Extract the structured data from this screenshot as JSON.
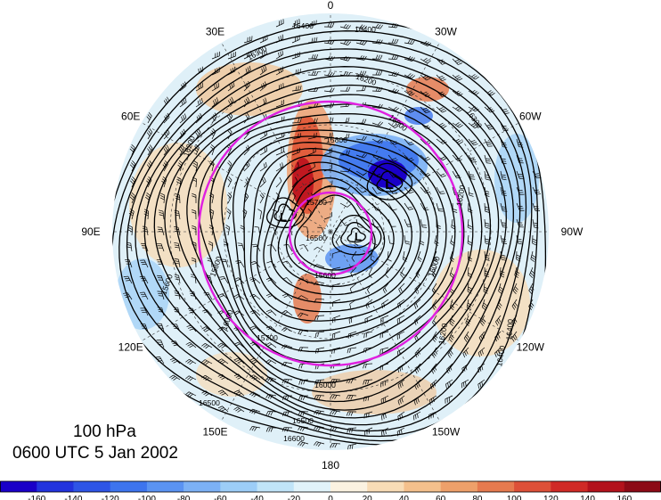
{
  "map": {
    "level": "100 hPa",
    "valid_time": "0600 UTC 5 Jan 2002",
    "longitude_labels": [
      {
        "text": "0",
        "lon": 0
      },
      {
        "text": "30W",
        "lon": -30
      },
      {
        "text": "60W",
        "lon": -60
      },
      {
        "text": "90W",
        "lon": -90
      },
      {
        "text": "120W",
        "lon": -120
      },
      {
        "text": "150W",
        "lon": -150
      },
      {
        "text": "180",
        "lon": 180
      },
      {
        "text": "150E",
        "lon": 150
      },
      {
        "text": "120E",
        "lon": 120
      },
      {
        "text": "90E",
        "lon": 90
      },
      {
        "text": "60E",
        "lon": 60
      },
      {
        "text": "30E",
        "lon": 30
      }
    ],
    "low_centers": [
      "L",
      "L",
      "L"
    ],
    "contour_labels": [
      "16400",
      "16400",
      "16300",
      "16200",
      "16200",
      "16000",
      "15800",
      "15700",
      "15600",
      "15700",
      "16000",
      "16200",
      "16400",
      "16500",
      "16600",
      "16500",
      "16000",
      "15800",
      "15600",
      "16200",
      "16300",
      "16400",
      "16500",
      "16000"
    ],
    "highlight_circle_color": "#e020e0",
    "colors": {
      "deep_blue": "#1a00c8",
      "positive_peak": "#c8102e",
      "neutral": "#ffffff"
    }
  },
  "colorbar": {
    "ticks": [
      "-160",
      "-140",
      "-120",
      "-100",
      "-80",
      "-60",
      "-40",
      "-20",
      "0",
      "20",
      "40",
      "60",
      "80",
      "100",
      "120",
      "140",
      "160"
    ],
    "colors": [
      "#1a00c8",
      "#2233dd",
      "#2e55e6",
      "#3d74ee",
      "#5a93f2",
      "#7cb1f5",
      "#9ccdf7",
      "#c0e4f8",
      "#e1f3fa",
      "#fbf2e1",
      "#f8dcb6",
      "#f4c08c",
      "#eea06a",
      "#e67a4f",
      "#dd5038",
      "#d02a26",
      "#b3121c",
      "#8c0a16"
    ]
  }
}
